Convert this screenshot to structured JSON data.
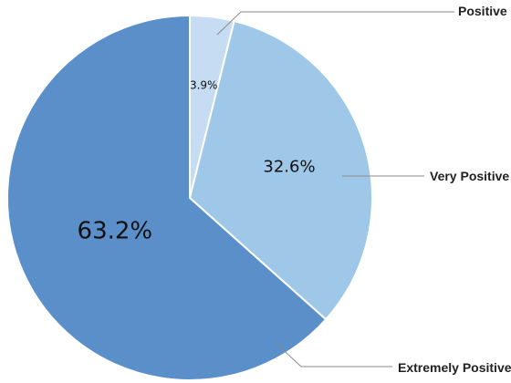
{
  "chart_data": {
    "type": "pie",
    "start_angle_deg": 0,
    "direction": "clockwise",
    "slices": [
      {
        "name": "Positive",
        "value": 3.9,
        "label": "3.9%",
        "color": "#c5dcf2"
      },
      {
        "name": "Very Positive",
        "value": 32.6,
        "label": "32.6%",
        "color": "#9fc8e8"
      },
      {
        "name": "Extremely Positive",
        "value": 63.2,
        "label": "63.2%",
        "color": "#5b8fca"
      }
    ],
    "legend": "none (callout labels with leader lines)"
  }
}
